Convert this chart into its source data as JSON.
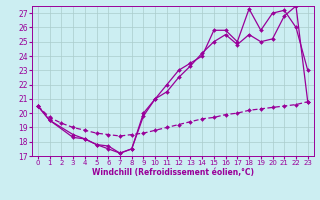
{
  "xlabel": "Windchill (Refroidissement éolien,°C)",
  "background_color": "#cceef2",
  "grid_color": "#aacccc",
  "line_color": "#990099",
  "xlim": [
    -0.5,
    23.5
  ],
  "ylim": [
    17,
    27.5
  ],
  "yticks": [
    17,
    18,
    19,
    20,
    21,
    22,
    23,
    24,
    25,
    26,
    27
  ],
  "xticks": [
    0,
    1,
    2,
    3,
    4,
    5,
    6,
    7,
    8,
    9,
    10,
    11,
    12,
    13,
    14,
    15,
    16,
    17,
    18,
    19,
    20,
    21,
    22,
    23
  ],
  "line1_x": [
    0,
    1,
    3,
    4,
    5,
    6,
    7,
    8,
    9,
    10,
    11,
    12,
    13,
    14,
    15,
    16,
    17,
    18,
    19,
    20,
    21,
    22,
    23
  ],
  "line1_y": [
    20.5,
    19.5,
    18.5,
    18.2,
    17.8,
    17.7,
    17.2,
    17.5,
    19.8,
    21.0,
    22.0,
    23.0,
    23.5,
    24.0,
    25.8,
    25.8,
    25.0,
    27.3,
    25.8,
    27.0,
    27.2,
    26.0,
    23.0
  ],
  "line2_x": [
    0,
    1,
    3,
    4,
    5,
    6,
    7,
    8,
    9,
    10,
    11,
    12,
    13,
    14,
    15,
    16,
    17,
    18,
    19,
    20,
    21,
    22,
    23
  ],
  "line2_y": [
    20.5,
    19.5,
    18.3,
    18.2,
    17.8,
    17.5,
    17.2,
    17.5,
    20.0,
    21.0,
    21.5,
    22.5,
    23.3,
    24.2,
    25.0,
    25.5,
    24.8,
    25.5,
    25.0,
    25.2,
    26.8,
    27.5,
    20.8
  ],
  "line3_x": [
    0,
    1,
    2,
    3,
    4,
    5,
    6,
    7,
    8,
    9,
    10,
    11,
    12,
    13,
    14,
    15,
    16,
    17,
    18,
    19,
    20,
    21,
    22,
    23
  ],
  "line3_y": [
    20.5,
    19.7,
    19.3,
    19.0,
    18.8,
    18.6,
    18.5,
    18.4,
    18.5,
    18.6,
    18.8,
    19.0,
    19.2,
    19.4,
    19.6,
    19.7,
    19.9,
    20.0,
    20.2,
    20.3,
    20.4,
    20.5,
    20.6,
    20.8
  ]
}
